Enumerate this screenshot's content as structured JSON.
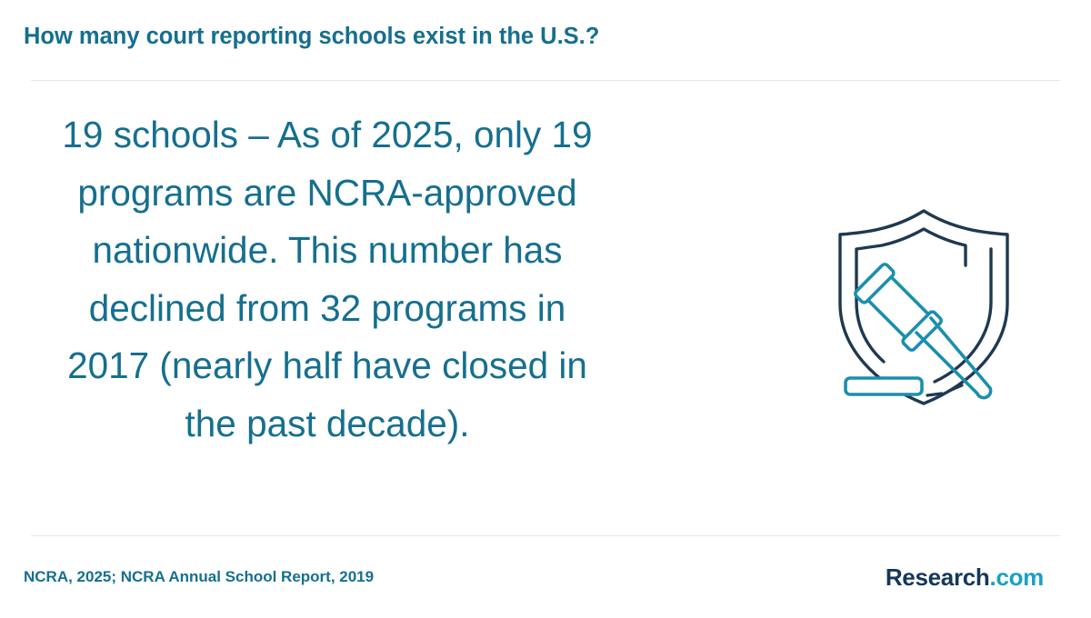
{
  "header": {
    "title": "How many court reporting schools exist in the U.S.?"
  },
  "stat": {
    "text": "19 schools – As of 2025, only 19 programs are NCRA-approved nationwide. This number has declined from 32 programs in 2017 (nearly half have closed in the past decade)."
  },
  "icon": {
    "name": "shield-gavel-icon"
  },
  "footer": {
    "source": "NCRA, 2025; NCRA Annual School Report, 2019",
    "logo_brand": "Research",
    "logo_tld": ".com"
  },
  "colors": {
    "accent": "#156f8f",
    "icon_dark": "#1e3950",
    "icon_teal": "#1a8fae",
    "logo_navy": "#14375a",
    "logo_cyan": "#1aa0c2"
  }
}
